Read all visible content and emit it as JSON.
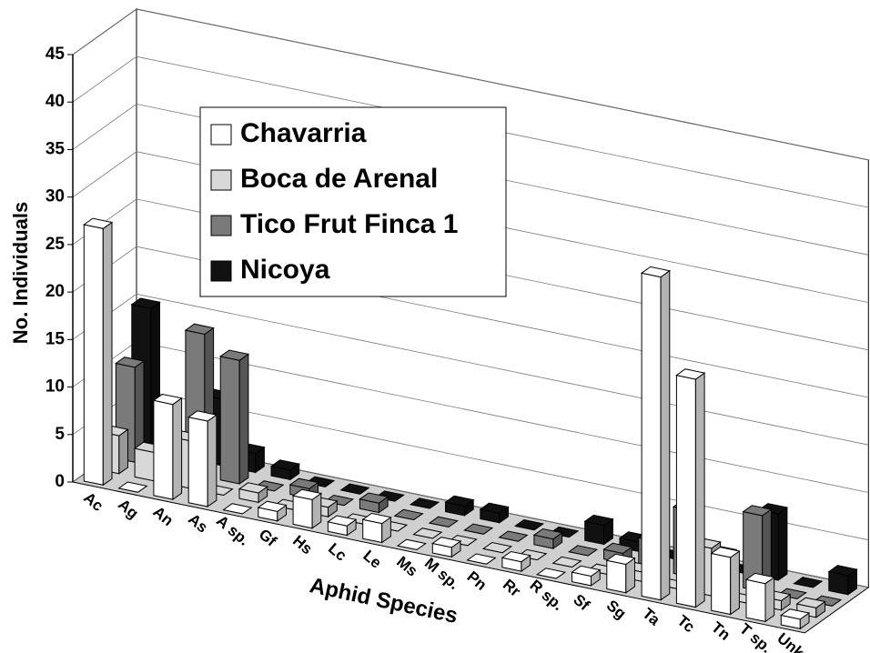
{
  "chart_data": {
    "type": "bar3d",
    "xlabel": "Aphid Species",
    "ylabel": "No. Individuals",
    "categories": [
      "Ac",
      "Ag",
      "An",
      "As",
      "A sp.",
      "Gf",
      "Hs",
      "Lc",
      "Le",
      "Ms",
      "M sp.",
      "Pn",
      "Rr",
      "R sp.",
      "Sf",
      "Sg",
      "Ta",
      "Tc",
      "Tn",
      "T sp.",
      "Unk"
    ],
    "series": [
      {
        "name": "Chavarria",
        "color": "#ffffff",
        "values": [
          27,
          0,
          10,
          9,
          0,
          1,
          3,
          1,
          2,
          0,
          1,
          0,
          1,
          0,
          1,
          3,
          34,
          24,
          6,
          4,
          1
        ]
      },
      {
        "name": "Boca de Arenal",
        "color": "#d8d8d8",
        "values": [
          4,
          3,
          5,
          0,
          1,
          0,
          1,
          0,
          0,
          0,
          0,
          0,
          0,
          0,
          0,
          1,
          0,
          5,
          0,
          1,
          1
        ]
      },
      {
        "name": "Tico Frut Finca 1",
        "color": "#7a7a7a",
        "values": [
          10,
          0,
          15,
          13,
          0,
          1,
          0,
          1,
          0,
          0,
          0,
          0,
          1,
          0,
          1,
          3,
          7,
          3,
          8,
          0,
          0
        ]
      },
      {
        "name": "Nicoya",
        "color": "#111111",
        "values": [
          15,
          0,
          7,
          2,
          1,
          0,
          0,
          0,
          0,
          1,
          1,
          0,
          0,
          2,
          1,
          0,
          0,
          0,
          7,
          0,
          2
        ]
      }
    ],
    "ylim": [
      0,
      45
    ],
    "yticks": [
      0,
      5,
      10,
      15,
      20,
      25,
      30,
      35,
      40,
      45
    ],
    "grid": true
  }
}
